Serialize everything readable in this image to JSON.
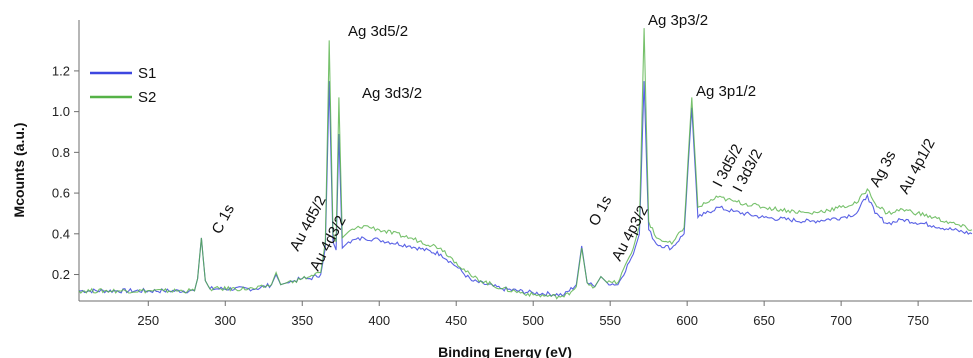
{
  "chart_data": {
    "type": "line",
    "xlabel": "Binding Energy (eV)",
    "ylabel": "Mcounts (a.u.)",
    "xlim": [
      205,
      785
    ],
    "ylim": [
      0.07,
      1.45
    ],
    "xticks": [
      250,
      300,
      350,
      400,
      450,
      500,
      550,
      600,
      650,
      700,
      750
    ],
    "yticks": [
      0.2,
      0.4,
      0.6,
      0.8,
      1.0,
      1.2
    ],
    "ytick_labels": [
      "0.2",
      "0.4",
      "0.6",
      "0.8",
      "1.0",
      "1.2"
    ],
    "grid": false,
    "legend_position": "top-left",
    "series": [
      {
        "name": "S1",
        "color": "#3d47e0",
        "x": [
          205,
          230,
          260,
          280,
          282,
          284.5,
          287,
          290,
          320,
          330,
          333,
          336,
          340,
          345,
          350,
          355,
          362,
          365,
          367.5,
          370,
          372,
          373.8,
          376,
          380,
          390,
          400,
          420,
          440,
          450,
          460,
          480,
          500,
          520,
          528,
          531.5,
          535,
          540,
          544,
          548,
          555,
          565,
          569,
          572,
          575,
          580,
          590,
          598,
          603,
          607,
          612,
          620,
          630,
          650,
          680,
          700,
          710,
          717,
          722,
          730,
          740,
          760,
          785
        ],
        "y": [
          0.12,
          0.12,
          0.12,
          0.12,
          0.18,
          0.38,
          0.17,
          0.13,
          0.13,
          0.15,
          0.2,
          0.15,
          0.16,
          0.17,
          0.18,
          0.18,
          0.2,
          0.33,
          1.15,
          0.36,
          0.32,
          0.89,
          0.33,
          0.36,
          0.38,
          0.37,
          0.34,
          0.3,
          0.24,
          0.17,
          0.13,
          0.11,
          0.1,
          0.15,
          0.34,
          0.16,
          0.14,
          0.19,
          0.16,
          0.15,
          0.3,
          0.4,
          1.15,
          0.42,
          0.35,
          0.33,
          0.4,
          1.02,
          0.48,
          0.5,
          0.53,
          0.51,
          0.48,
          0.46,
          0.48,
          0.5,
          0.59,
          0.5,
          0.45,
          0.47,
          0.44,
          0.4
        ]
      },
      {
        "name": "S2",
        "color": "#55b247",
        "x": [
          205,
          230,
          260,
          280,
          282,
          284.5,
          287,
          290,
          320,
          330,
          333,
          336,
          340,
          345,
          350,
          355,
          362,
          365,
          367.5,
          370,
          372,
          373.8,
          376,
          380,
          390,
          400,
          420,
          440,
          450,
          460,
          480,
          500,
          520,
          528,
          531.5,
          535,
          540,
          544,
          548,
          555,
          565,
          569,
          572,
          575,
          580,
          590,
          598,
          603,
          607,
          612,
          620,
          630,
          650,
          680,
          700,
          710,
          717,
          722,
          730,
          740,
          760,
          785
        ],
        "y": [
          0.12,
          0.12,
          0.12,
          0.12,
          0.18,
          0.38,
          0.17,
          0.13,
          0.13,
          0.15,
          0.21,
          0.15,
          0.16,
          0.17,
          0.18,
          0.19,
          0.21,
          0.36,
          1.35,
          0.4,
          0.36,
          1.07,
          0.38,
          0.41,
          0.44,
          0.42,
          0.38,
          0.33,
          0.26,
          0.19,
          0.13,
          0.1,
          0.09,
          0.14,
          0.33,
          0.16,
          0.14,
          0.19,
          0.16,
          0.16,
          0.33,
          0.44,
          1.41,
          0.46,
          0.38,
          0.35,
          0.43,
          1.07,
          0.53,
          0.55,
          0.58,
          0.56,
          0.53,
          0.5,
          0.53,
          0.55,
          0.62,
          0.55,
          0.5,
          0.52,
          0.48,
          0.42
        ]
      }
    ],
    "annotations": [
      {
        "label": "C 1s",
        "x": 285
      },
      {
        "label": "Au 4d5/2",
        "x": 335
      },
      {
        "label": "Au 4d3/2",
        "x": 353
      },
      {
        "label": "Ag 3d5/2",
        "x": 368
      },
      {
        "label": "Ag 3d3/2",
        "x": 374
      },
      {
        "label": "O 1s",
        "x": 532
      },
      {
        "label": "Au 4p3/2",
        "x": 547
      },
      {
        "label": "Ag 3p3/2",
        "x": 573
      },
      {
        "label": "Ag 3p1/2",
        "x": 604
      },
      {
        "label": "I 3d5/2",
        "x": 619
      },
      {
        "label": "I 3d3/2",
        "x": 631
      },
      {
        "label": "Ag 3s",
        "x": 718
      },
      {
        "label": "Au 4p1/2",
        "x": 742
      }
    ]
  }
}
